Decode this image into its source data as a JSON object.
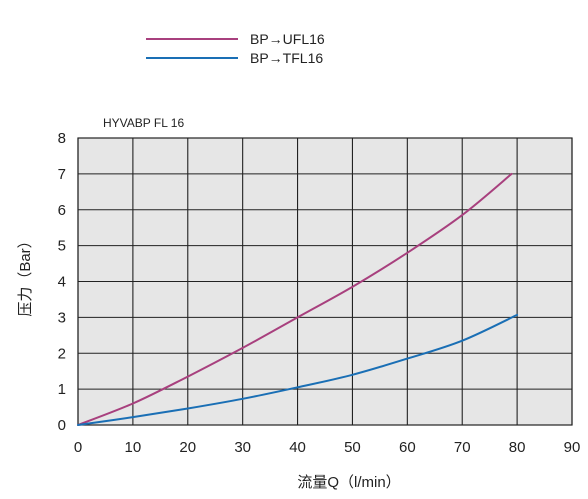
{
  "chart_data": {
    "type": "line",
    "model_label": "HYVABP FL 16",
    "xlabel": "流量Q（l/min）",
    "ylabel": "压力（Bar）",
    "xlim": [
      0,
      90
    ],
    "ylim": [
      0,
      8
    ],
    "x_ticks": [
      "0",
      "10",
      "20",
      "30",
      "40",
      "50",
      "60",
      "70",
      "80",
      "90"
    ],
    "y_ticks": [
      "0",
      "1",
      "2",
      "3",
      "4",
      "5",
      "6",
      "7",
      "8"
    ],
    "grid": true,
    "legend_position": "top",
    "series": [
      {
        "name": "BP→UFL16",
        "color": "#a8407e",
        "x": [
          0,
          10,
          20,
          30,
          40,
          50,
          60,
          70,
          79
        ],
        "y": [
          0,
          0.6,
          1.35,
          2.15,
          3.0,
          3.85,
          4.8,
          5.85,
          7.0
        ]
      },
      {
        "name": "BP→TFL16",
        "color": "#1a6fb5",
        "x": [
          0,
          10,
          20,
          30,
          40,
          50,
          60,
          70,
          80
        ],
        "y": [
          0,
          0.22,
          0.46,
          0.73,
          1.05,
          1.4,
          1.85,
          2.35,
          3.07
        ]
      }
    ]
  }
}
